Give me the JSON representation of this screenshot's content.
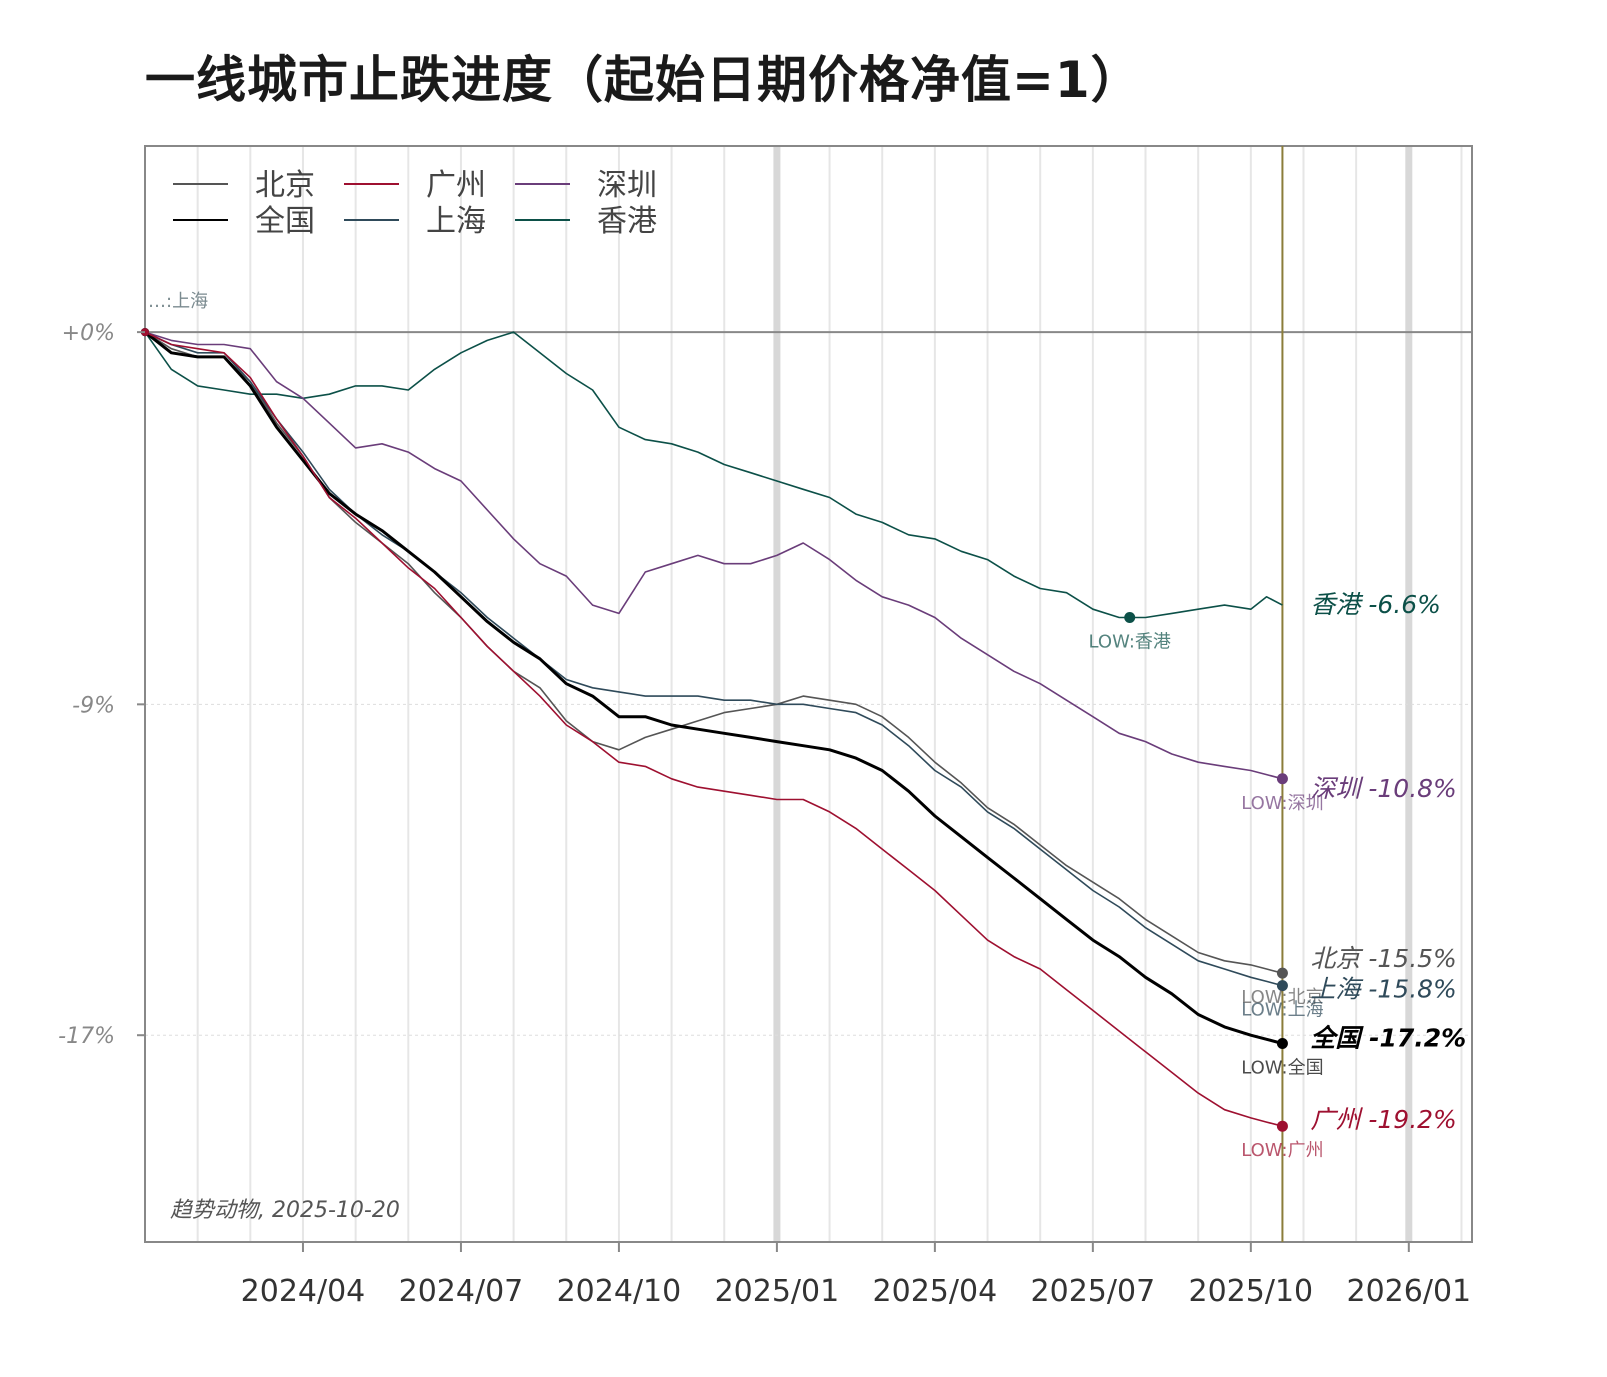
{
  "title": "一线城市止跌进度（起始日期价格净值=1）",
  "credit": "趋势动物, 2025-10-20",
  "colors": {
    "北京": "#555555",
    "全国": "#000000",
    "广州": "#9e1030",
    "上海": "#2f4a5a",
    "深圳": "#6a3d7a",
    "香港": "#0c5048",
    "vline": "#8b7d3a",
    "zero": "#888888"
  },
  "legend": [
    {
      "name": "北京"
    },
    {
      "name": "广州"
    },
    {
      "name": "深圳"
    },
    {
      "name": "全国"
    },
    {
      "name": "上海"
    },
    {
      "name": "香港"
    }
  ],
  "start_labels": "…:上海",
  "chart_data": {
    "type": "line",
    "title": "一线城市止跌进度（起始日期价格净值=1）",
    "xlabel": "",
    "ylabel": "",
    "x_unit": "months since 2024-01",
    "xlim": [
      0,
      25.2
    ],
    "ylim": [
      -22,
      4.5
    ],
    "x_ticks": [
      {
        "x": 3,
        "label": "2024/04"
      },
      {
        "x": 6,
        "label": "2024/07"
      },
      {
        "x": 9,
        "label": "2024/10"
      },
      {
        "x": 12,
        "label": "2025/01"
      },
      {
        "x": 15,
        "label": "2025/04"
      },
      {
        "x": 18,
        "label": "2025/07"
      },
      {
        "x": 21,
        "label": "2025/10"
      },
      {
        "x": 24,
        "label": "2026/01"
      }
    ],
    "y_ticks": [
      {
        "y": 0,
        "label": "+0%"
      },
      {
        "y": -9,
        "label": "-9%"
      },
      {
        "y": -17,
        "label": "-17%"
      }
    ],
    "end_x": 21.6,
    "series": [
      {
        "name": "香港",
        "end_label": "香港 -6.6%",
        "low_label": "LOW:香港",
        "low_x": 18.7,
        "low_y": -6.9,
        "x": [
          0,
          0.5,
          1,
          1.5,
          2,
          2.5,
          3,
          3.5,
          4,
          4.5,
          5,
          5.5,
          6,
          6.5,
          7,
          7.5,
          8,
          8.5,
          9,
          9.5,
          10,
          10.5,
          11,
          11.5,
          12,
          12.5,
          13,
          13.5,
          14,
          14.5,
          15,
          15.5,
          16,
          16.5,
          17,
          17.5,
          18,
          18.5,
          19,
          19.5,
          20,
          20.5,
          21,
          21.3,
          21.6
        ],
        "y": [
          0,
          -0.9,
          -1.3,
          -1.4,
          -1.5,
          -1.5,
          -1.6,
          -1.5,
          -1.3,
          -1.3,
          -1.4,
          -0.9,
          -0.5,
          -0.2,
          0,
          -0.5,
          -1.0,
          -1.4,
          -2.3,
          -2.6,
          -2.7,
          -2.9,
          -3.2,
          -3.4,
          -3.6,
          -3.8,
          -4.0,
          -4.4,
          -4.6,
          -4.9,
          -5.0,
          -5.3,
          -5.5,
          -5.9,
          -6.2,
          -6.3,
          -6.7,
          -6.9,
          -6.9,
          -6.8,
          -6.7,
          -6.6,
          -6.7,
          -6.4,
          -6.6
        ]
      },
      {
        "name": "深圳",
        "end_label": "深圳 -10.8%",
        "low_label": "LOW:深圳",
        "low_x": 21.6,
        "low_y": -10.8,
        "x": [
          0,
          0.5,
          1,
          1.5,
          2,
          2.5,
          3,
          3.5,
          4,
          4.5,
          5,
          5.5,
          6,
          6.5,
          7,
          7.5,
          8,
          8.5,
          9,
          9.5,
          10,
          10.5,
          11,
          11.5,
          12,
          12.5,
          13,
          13.5,
          14,
          14.5,
          15,
          15.5,
          16,
          16.5,
          17,
          17.5,
          18,
          18.5,
          19,
          19.5,
          20,
          20.5,
          21,
          21.3,
          21.6
        ],
        "y": [
          0,
          -0.2,
          -0.3,
          -0.3,
          -0.4,
          -1.2,
          -1.6,
          -2.2,
          -2.8,
          -2.7,
          -2.9,
          -3.3,
          -3.6,
          -4.3,
          -5.0,
          -5.6,
          -5.9,
          -6.6,
          -6.8,
          -5.8,
          -5.6,
          -5.4,
          -5.6,
          -5.6,
          -5.4,
          -5.1,
          -5.5,
          -6.0,
          -6.4,
          -6.6,
          -6.9,
          -7.4,
          -7.8,
          -8.2,
          -8.5,
          -8.9,
          -9.3,
          -9.7,
          -9.9,
          -10.2,
          -10.4,
          -10.5,
          -10.6,
          -10.7,
          -10.8
        ]
      },
      {
        "name": "北京",
        "end_label": "北京 -15.5%",
        "low_label": "LOW:北京",
        "low_x": 21.6,
        "low_y": -15.5,
        "x": [
          0,
          0.5,
          1,
          1.5,
          2,
          2.5,
          3,
          3.5,
          4,
          4.5,
          5,
          5.5,
          6,
          6.5,
          7,
          7.5,
          8,
          8.5,
          9,
          9.5,
          10,
          10.5,
          11,
          11.5,
          12,
          12.5,
          13,
          13.5,
          14,
          14.5,
          15,
          15.5,
          16,
          16.5,
          17,
          17.5,
          18,
          18.5,
          19,
          19.5,
          20,
          20.5,
          21,
          21.3,
          21.6
        ],
        "y": [
          0,
          -0.4,
          -0.6,
          -0.6,
          -1.2,
          -2.2,
          -3.0,
          -4.0,
          -4.6,
          -5.1,
          -5.6,
          -6.3,
          -6.9,
          -7.6,
          -8.2,
          -8.6,
          -9.4,
          -9.9,
          -10.1,
          -9.8,
          -9.6,
          -9.4,
          -9.2,
          -9.1,
          -9.0,
          -8.8,
          -8.9,
          -9.0,
          -9.3,
          -9.8,
          -10.4,
          -10.9,
          -11.5,
          -11.9,
          -12.4,
          -12.9,
          -13.3,
          -13.7,
          -14.2,
          -14.6,
          -15.0,
          -15.2,
          -15.3,
          -15.4,
          -15.5
        ]
      },
      {
        "name": "上海",
        "end_label": "上海 -15.8%",
        "low_label": "LOW:上海",
        "low_x": 21.6,
        "low_y": -15.8,
        "x": [
          0,
          0.5,
          1,
          1.5,
          2,
          2.5,
          3,
          3.5,
          4,
          4.5,
          5,
          5.5,
          6,
          6.5,
          7,
          7.5,
          8,
          8.5,
          9,
          9.5,
          10,
          10.5,
          11,
          11.5,
          12,
          12.5,
          13,
          13.5,
          14,
          14.5,
          15,
          15.5,
          16,
          16.5,
          17,
          17.5,
          18,
          18.5,
          19,
          19.5,
          20,
          20.5,
          21,
          21.3,
          21.6
        ],
        "y": [
          0,
          -0.3,
          -0.5,
          -0.5,
          -1.2,
          -2.1,
          -2.9,
          -3.8,
          -4.4,
          -4.9,
          -5.3,
          -5.8,
          -6.3,
          -6.9,
          -7.4,
          -7.9,
          -8.4,
          -8.6,
          -8.7,
          -8.8,
          -8.8,
          -8.8,
          -8.9,
          -8.9,
          -9.0,
          -9.0,
          -9.1,
          -9.2,
          -9.5,
          -10.0,
          -10.6,
          -11.0,
          -11.6,
          -12.0,
          -12.5,
          -13.0,
          -13.5,
          -13.9,
          -14.4,
          -14.8,
          -15.2,
          -15.4,
          -15.6,
          -15.7,
          -15.8
        ]
      },
      {
        "name": "全国",
        "end_label": "全国 -17.2%",
        "low_label": "LOW:全国",
        "low_x": 21.6,
        "low_y": -17.2,
        "x": [
          0,
          0.5,
          1,
          1.5,
          2,
          2.5,
          3,
          3.5,
          4,
          4.5,
          5,
          5.5,
          6,
          6.5,
          7,
          7.5,
          8,
          8.5,
          9,
          9.5,
          10,
          10.5,
          11,
          11.5,
          12,
          12.5,
          13,
          13.5,
          14,
          14.5,
          15,
          15.5,
          16,
          16.5,
          17,
          17.5,
          18,
          18.5,
          19,
          19.5,
          20,
          20.5,
          21,
          21.3,
          21.6
        ],
        "y": [
          0,
          -0.5,
          -0.6,
          -0.6,
          -1.3,
          -2.3,
          -3.1,
          -3.9,
          -4.4,
          -4.8,
          -5.3,
          -5.8,
          -6.4,
          -7.0,
          -7.5,
          -7.9,
          -8.5,
          -8.8,
          -9.3,
          -9.3,
          -9.5,
          -9.6,
          -9.7,
          -9.8,
          -9.9,
          -10.0,
          -10.1,
          -10.3,
          -10.6,
          -11.1,
          -11.7,
          -12.2,
          -12.7,
          -13.2,
          -13.7,
          -14.2,
          -14.7,
          -15.1,
          -15.6,
          -16.0,
          -16.5,
          -16.8,
          -17.0,
          -17.1,
          -17.2
        ]
      },
      {
        "name": "广州",
        "end_label": "广州 -19.2%",
        "low_label": "LOW:广州",
        "low_x": 21.6,
        "low_y": -19.2,
        "x": [
          0,
          0.5,
          1,
          1.5,
          2,
          2.5,
          3,
          3.5,
          4,
          4.5,
          5,
          5.5,
          6,
          6.5,
          7,
          7.5,
          8,
          8.5,
          9,
          9.5,
          10,
          10.5,
          11,
          11.5,
          12,
          12.5,
          13,
          13.5,
          14,
          14.5,
          15,
          15.5,
          16,
          16.5,
          17,
          17.5,
          18,
          18.5,
          19,
          19.5,
          20,
          20.5,
          21,
          21.3,
          21.6
        ],
        "y": [
          0,
          -0.3,
          -0.4,
          -0.5,
          -1.1,
          -2.1,
          -3.0,
          -4.0,
          -4.5,
          -5.1,
          -5.7,
          -6.2,
          -6.9,
          -7.6,
          -8.2,
          -8.8,
          -9.5,
          -9.9,
          -10.4,
          -10.5,
          -10.8,
          -11.0,
          -11.1,
          -11.2,
          -11.3,
          -11.3,
          -11.6,
          -12.0,
          -12.5,
          -13.0,
          -13.5,
          -14.1,
          -14.7,
          -15.1,
          -15.4,
          -15.9,
          -16.4,
          -16.9,
          -17.4,
          -17.9,
          -18.4,
          -18.8,
          -19.0,
          -19.1,
          -19.2
        ]
      }
    ]
  }
}
